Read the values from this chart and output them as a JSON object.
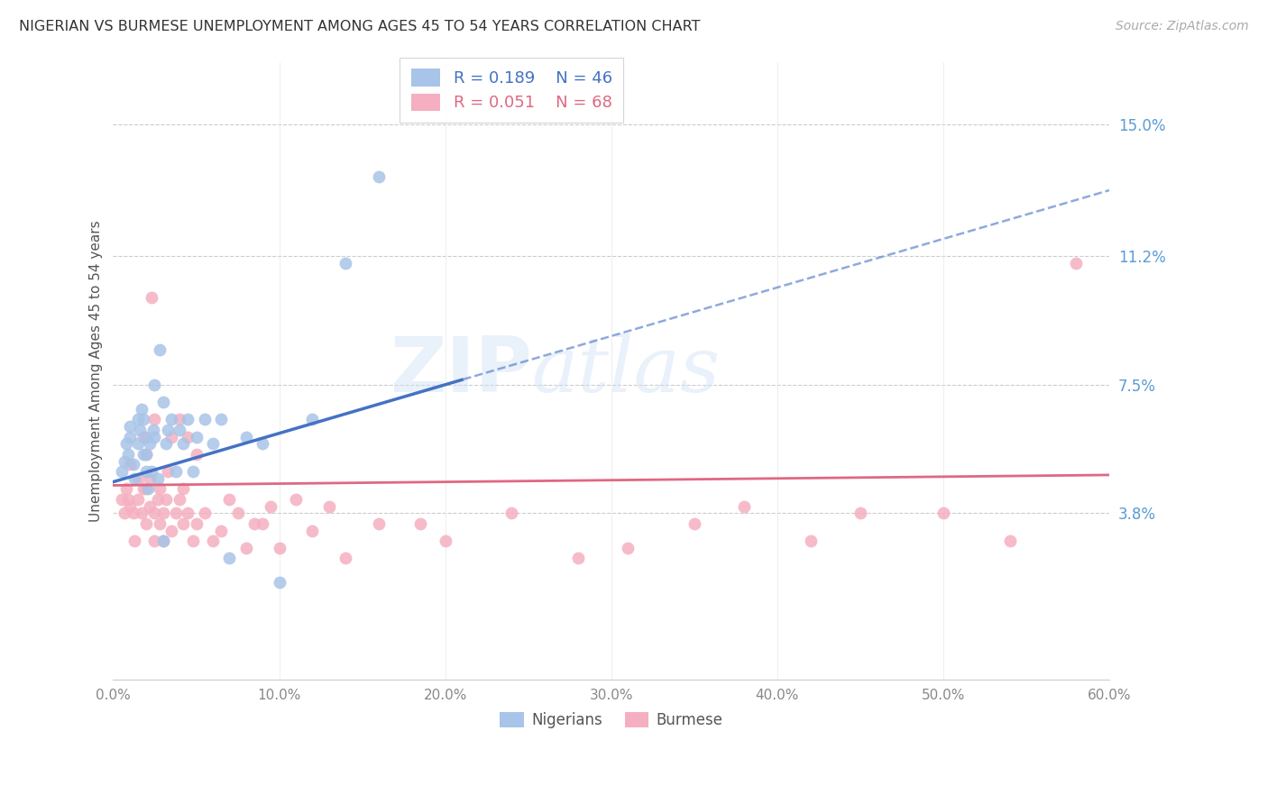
{
  "title": "NIGERIAN VS BURMESE UNEMPLOYMENT AMONG AGES 45 TO 54 YEARS CORRELATION CHART",
  "source": "Source: ZipAtlas.com",
  "ylabel": "Unemployment Among Ages 45 to 54 years",
  "xlim": [
    0.0,
    0.6
  ],
  "ylim": [
    -0.01,
    0.168
  ],
  "yticks": [
    0.038,
    0.075,
    0.112,
    0.15
  ],
  "ytick_labels": [
    "3.8%",
    "7.5%",
    "11.2%",
    "15.0%"
  ],
  "xticks": [
    0.0,
    0.1,
    0.2,
    0.3,
    0.4,
    0.5,
    0.6
  ],
  "xtick_labels": [
    "0.0%",
    "10.0%",
    "20.0%",
    "30.0%",
    "40.0%",
    "50.0%",
    "60.0%"
  ],
  "nigerian_R": 0.189,
  "nigerian_N": 46,
  "burmese_R": 0.051,
  "burmese_N": 68,
  "nigerian_color": "#a8c4e8",
  "burmese_color": "#f5afc0",
  "nigerian_line_color": "#4472c4",
  "burmese_line_color": "#e06882",
  "watermark_zip": "ZIP",
  "watermark_atlas": "atlas",
  "nigerian_x": [
    0.005,
    0.007,
    0.008,
    0.009,
    0.01,
    0.01,
    0.012,
    0.013,
    0.015,
    0.015,
    0.016,
    0.017,
    0.018,
    0.018,
    0.02,
    0.02,
    0.02,
    0.021,
    0.022,
    0.023,
    0.024,
    0.025,
    0.025,
    0.027,
    0.028,
    0.03,
    0.03,
    0.032,
    0.033,
    0.035,
    0.038,
    0.04,
    0.042,
    0.045,
    0.048,
    0.05,
    0.055,
    0.06,
    0.065,
    0.07,
    0.08,
    0.09,
    0.1,
    0.12,
    0.14,
    0.16
  ],
  "nigerian_y": [
    0.05,
    0.053,
    0.058,
    0.055,
    0.063,
    0.06,
    0.052,
    0.048,
    0.058,
    0.065,
    0.062,
    0.068,
    0.055,
    0.065,
    0.05,
    0.055,
    0.06,
    0.045,
    0.058,
    0.05,
    0.062,
    0.06,
    0.075,
    0.048,
    0.085,
    0.03,
    0.07,
    0.058,
    0.062,
    0.065,
    0.05,
    0.062,
    0.058,
    0.065,
    0.05,
    0.06,
    0.065,
    0.058,
    0.065,
    0.025,
    0.06,
    0.058,
    0.018,
    0.065,
    0.11,
    0.135
  ],
  "burmese_x": [
    0.005,
    0.007,
    0.008,
    0.009,
    0.01,
    0.01,
    0.012,
    0.013,
    0.015,
    0.015,
    0.017,
    0.018,
    0.018,
    0.02,
    0.02,
    0.02,
    0.022,
    0.022,
    0.023,
    0.025,
    0.025,
    0.025,
    0.027,
    0.028,
    0.028,
    0.03,
    0.03,
    0.032,
    0.033,
    0.035,
    0.035,
    0.038,
    0.04,
    0.04,
    0.042,
    0.042,
    0.045,
    0.045,
    0.048,
    0.05,
    0.05,
    0.055,
    0.06,
    0.065,
    0.07,
    0.075,
    0.08,
    0.085,
    0.09,
    0.095,
    0.1,
    0.11,
    0.12,
    0.13,
    0.14,
    0.16,
    0.185,
    0.2,
    0.24,
    0.28,
    0.31,
    0.35,
    0.38,
    0.42,
    0.45,
    0.5,
    0.54,
    0.58
  ],
  "burmese_y": [
    0.042,
    0.038,
    0.045,
    0.042,
    0.04,
    0.052,
    0.038,
    0.03,
    0.042,
    0.048,
    0.038,
    0.06,
    0.045,
    0.035,
    0.045,
    0.055,
    0.04,
    0.048,
    0.1,
    0.03,
    0.038,
    0.065,
    0.042,
    0.035,
    0.045,
    0.03,
    0.038,
    0.042,
    0.05,
    0.033,
    0.06,
    0.038,
    0.042,
    0.065,
    0.035,
    0.045,
    0.038,
    0.06,
    0.03,
    0.035,
    0.055,
    0.038,
    0.03,
    0.033,
    0.042,
    0.038,
    0.028,
    0.035,
    0.035,
    0.04,
    0.028,
    0.042,
    0.033,
    0.04,
    0.025,
    0.035,
    0.035,
    0.03,
    0.038,
    0.025,
    0.028,
    0.035,
    0.04,
    0.03,
    0.038,
    0.038,
    0.03,
    0.11
  ]
}
